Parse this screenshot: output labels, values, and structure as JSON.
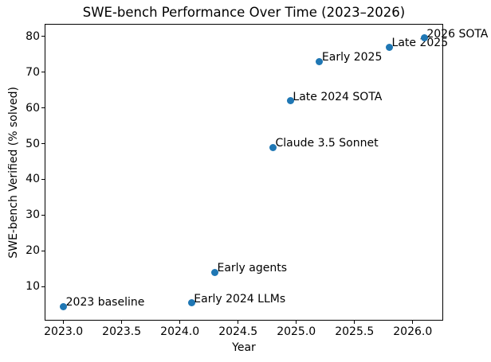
{
  "chart_data": {
    "type": "scatter",
    "title": "SWE-bench Performance Over Time (2023–2026)",
    "xlabel": "Year",
    "ylabel": "SWE-bench Verified (% solved)",
    "xlim": [
      2022.845,
      2026.255
    ],
    "ylim": [
      0.75,
      83.25
    ],
    "grid": false,
    "legend": null,
    "marker_color": "#1f77b4",
    "axis_color": "#000000",
    "background_color": "#ffffff",
    "xticks": {
      "values": [
        2023.0,
        2023.5,
        2024.0,
        2024.5,
        2025.0,
        2025.5,
        2026.0
      ],
      "labels": [
        "2023.0",
        "2023.5",
        "2024.0",
        "2024.5",
        "2025.0",
        "2025.5",
        "2026.0"
      ]
    },
    "yticks": {
      "values": [
        10,
        20,
        30,
        40,
        50,
        60,
        70,
        80
      ],
      "labels": [
        "10",
        "20",
        "30",
        "40",
        "50",
        "60",
        "70",
        "80"
      ]
    },
    "points": [
      {
        "x": 2023.0,
        "y": 4.5,
        "label": "2023 baseline"
      },
      {
        "x": 2024.1,
        "y": 5.5,
        "label": "Early 2024 LLMs"
      },
      {
        "x": 2024.3,
        "y": 14,
        "label": "Early agents"
      },
      {
        "x": 2024.8,
        "y": 49,
        "label": "Claude 3.5 Sonnet"
      },
      {
        "x": 2024.95,
        "y": 62,
        "label": "Late 2024 SOTA"
      },
      {
        "x": 2025.2,
        "y": 73,
        "label": "Early 2025"
      },
      {
        "x": 2025.8,
        "y": 77,
        "label": "Late 2025"
      },
      {
        "x": 2026.1,
        "y": 79.5,
        "label": "2026 SOTA"
      }
    ]
  }
}
